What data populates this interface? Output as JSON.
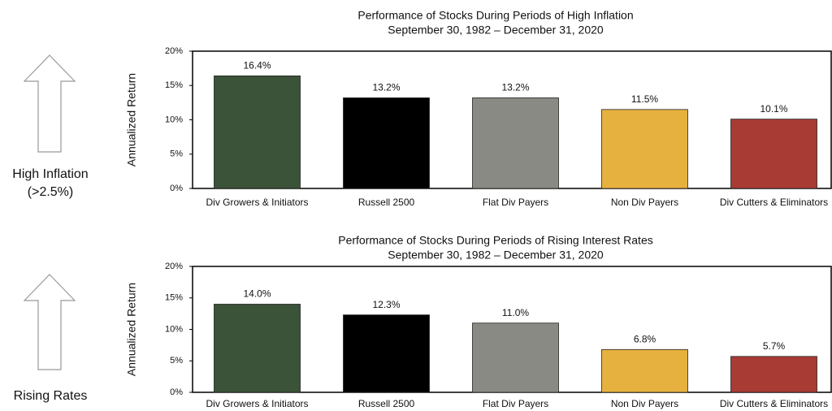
{
  "chart_data": [
    {
      "type": "bar",
      "title": "Performance of Stocks During Periods of High Inflation",
      "subtitle": "September 30, 1982 – December 31, 2020",
      "ylabel": "Annualized  Return",
      "annotations": [
        "High Inflation",
        "(>2.5%)"
      ],
      "categories": [
        "Div Growers & Initiators",
        "Russell 2500",
        "Flat Div Payers",
        "Non Div Payers",
        "Div Cutters & Eliminators"
      ],
      "values": [
        16.4,
        13.2,
        13.2,
        11.5,
        10.1
      ],
      "value_labels": [
        "16.4%",
        "13.2%",
        "13.2%",
        "11.5%",
        "10.1%"
      ],
      "colors": [
        "#3b5338",
        "#000000",
        "#8a8a84",
        "#e6b13e",
        "#a83b34"
      ],
      "ylim": [
        0,
        20
      ],
      "yticks": [
        {
          "value": 0,
          "label": "0%"
        },
        {
          "value": 5,
          "label": "5%"
        },
        {
          "value": 10,
          "label": "10%"
        },
        {
          "value": 15,
          "label": "15%"
        },
        {
          "value": 20,
          "label": "20%"
        }
      ],
      "grid": false
    },
    {
      "type": "bar",
      "title": "Performance of Stocks During Periods of Rising Interest Rates",
      "subtitle": "September 30, 1982 – December 31, 2020",
      "ylabel": "Annualized  Return",
      "annotations": [
        "Rising Rates"
      ],
      "categories": [
        "Div Growers & Initiators",
        "Russell 2500",
        "Flat Div Payers",
        "Non Div Payers",
        "Div Cutters & Eliminators"
      ],
      "values": [
        14.0,
        12.3,
        11.0,
        6.8,
        5.7
      ],
      "value_labels": [
        "14.0%",
        "12.3%",
        "11.0%",
        "6.8%",
        "5.7%"
      ],
      "colors": [
        "#3b5338",
        "#000000",
        "#8a8a84",
        "#e6b13e",
        "#a83b34"
      ],
      "ylim": [
        0,
        20
      ],
      "yticks": [
        {
          "value": 0,
          "label": "0%"
        },
        {
          "value": 5,
          "label": "5%"
        },
        {
          "value": 10,
          "label": "10%"
        },
        {
          "value": 15,
          "label": "15%"
        },
        {
          "value": 20,
          "label": "20%"
        }
      ],
      "grid": false
    }
  ]
}
